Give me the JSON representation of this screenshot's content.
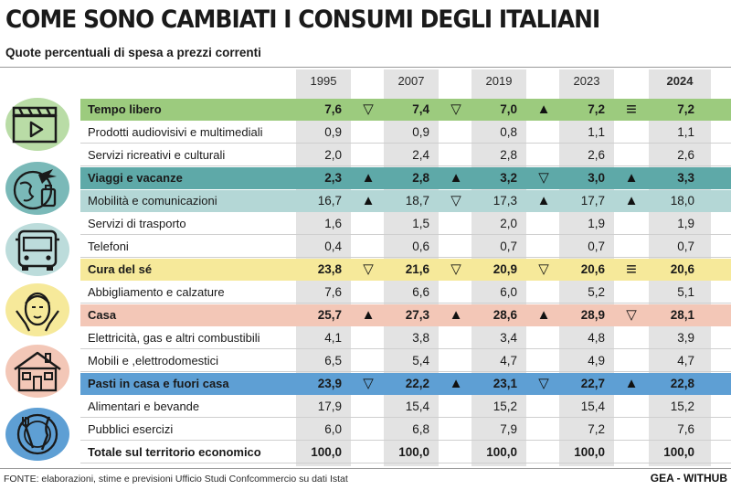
{
  "header": {
    "title": "COME SONO CAMBIATI I CONSUMI DEGLI ITALIANI",
    "subtitle": "Quote percentuali di spesa a prezzi correnti"
  },
  "footer": {
    "source": "FONTE: elaborazioni, stime e previsioni Ufficio Studi Confcommercio su dati Istat",
    "credit": "GEA - WITHUB"
  },
  "chart_data": {
    "type": "table",
    "title": "COME SONO CAMBIATI I CONSUMI DEGLI ITALIANI",
    "subtitle": "Quote percentuali di spesa a prezzi correnti",
    "columns": [
      "1995",
      "2007",
      "2019",
      "2023",
      "2024"
    ],
    "rows": [
      {
        "label": "Tempo libero",
        "category": true,
        "color": "#9ccb7e",
        "values": [
          "7,6",
          "7,4",
          "7,0",
          "7,2",
          "7,2"
        ],
        "trend": [
          "down",
          "down",
          "up",
          "equal"
        ]
      },
      {
        "label": "Prodotti audiovisivi e multimediali",
        "values": [
          "0,9",
          "0,9",
          "0,8",
          "1,1",
          "1,1"
        ]
      },
      {
        "label": "Servizi ricreativi e culturali",
        "values": [
          "2,0",
          "2,4",
          "2,8",
          "2,6",
          "2,6"
        ]
      },
      {
        "label": "Viaggi e vacanze",
        "category": true,
        "color": "#5ea9a8",
        "values": [
          "2,3",
          "2,8",
          "3,2",
          "3,0",
          "3,3"
        ],
        "trend": [
          "up",
          "up",
          "down",
          "up"
        ]
      },
      {
        "label": "Mobilità e comunicazioni",
        "category": true,
        "secondary": true,
        "color": "#b4d7d6",
        "values": [
          "16,7",
          "18,7",
          "17,3",
          "17,7",
          "18,0"
        ],
        "trend": [
          "up",
          "down",
          "up",
          "up"
        ]
      },
      {
        "label": "Servizi di trasporto",
        "values": [
          "1,6",
          "1,5",
          "2,0",
          "1,9",
          "1,9"
        ]
      },
      {
        "label": "Telefoni",
        "values": [
          "0,4",
          "0,6",
          "0,7",
          "0,7",
          "0,7"
        ]
      },
      {
        "label": "Cura del sé",
        "category": true,
        "color": "#f6e99a",
        "values": [
          "23,8",
          "21,6",
          "20,9",
          "20,6",
          "20,6"
        ],
        "trend": [
          "down",
          "down",
          "down",
          "equal"
        ]
      },
      {
        "label": "Abbigliamento e calzature",
        "values": [
          "7,6",
          "6,6",
          "6,0",
          "5,2",
          "5,1"
        ]
      },
      {
        "label": "Casa",
        "category": true,
        "color": "#f3c7b7",
        "values": [
          "25,7",
          "27,3",
          "28,6",
          "28,9",
          "28,1"
        ],
        "trend": [
          "up",
          "up",
          "up",
          "down"
        ]
      },
      {
        "label": "Elettricità, gas e altri combustibili",
        "values": [
          "4,1",
          "3,8",
          "3,4",
          "4,8",
          "3,9"
        ]
      },
      {
        "label": "Mobili e ,elettrodomestici",
        "values": [
          "6,5",
          "5,4",
          "4,7",
          "4,9",
          "4,7"
        ]
      },
      {
        "label": "Pasti in casa e fuori casa",
        "category": true,
        "color": "#5e9fd4",
        "values": [
          "23,9",
          "22,2",
          "23,1",
          "22,7",
          "22,8"
        ],
        "trend": [
          "down",
          "up",
          "down",
          "up"
        ]
      },
      {
        "label": "Alimentari e bevande",
        "values": [
          "17,9",
          "15,4",
          "15,2",
          "15,4",
          "15,2"
        ]
      },
      {
        "label": "Pubblici esercizi",
        "values": [
          "6,0",
          "6,8",
          "7,9",
          "7,2",
          "7,6"
        ]
      },
      {
        "label": "Totale sul territorio economico",
        "total": true,
        "values": [
          "100,0",
          "100,0",
          "100,0",
          "100,0",
          "100,0"
        ]
      }
    ]
  },
  "icons": [
    {
      "name": "clapperboard-icon",
      "color": "#b9dca6"
    },
    {
      "name": "travel-globe-icon",
      "color": "#7ab9b8"
    },
    {
      "name": "bus-icon",
      "color": "#bcdcdb"
    },
    {
      "name": "face-care-icon",
      "color": "#f6e99a"
    },
    {
      "name": "house-icon",
      "color": "#f3c7b7"
    },
    {
      "name": "plate-cutlery-icon",
      "color": "#5e9fd4"
    }
  ]
}
